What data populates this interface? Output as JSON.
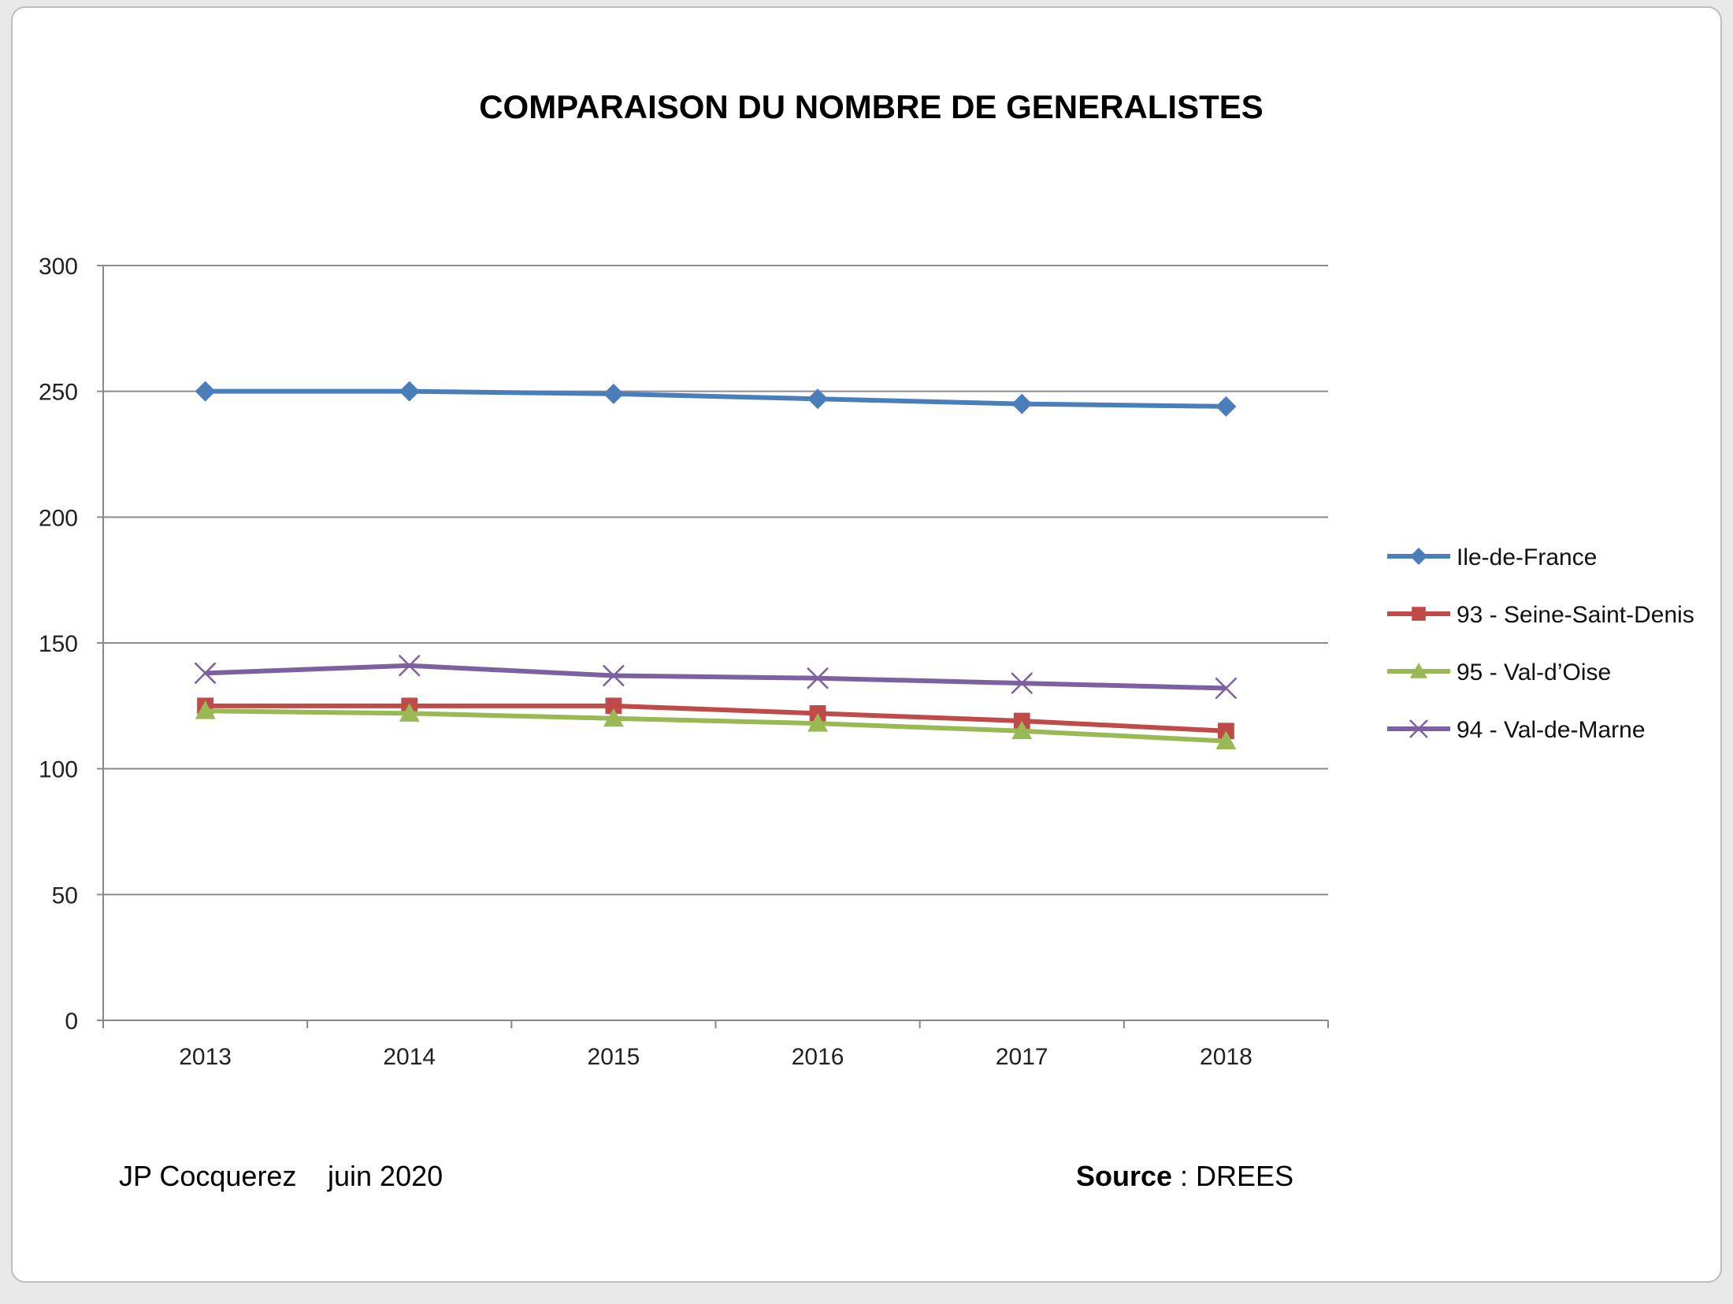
{
  "chart_data": {
    "type": "line",
    "title": "COMPARAISON DU NOMBRE DE GENERALISTES",
    "x": [
      "2013",
      "2014",
      "2015",
      "2016",
      "2017",
      "2018"
    ],
    "ylim": [
      0,
      300
    ],
    "yticks": [
      0,
      50,
      100,
      150,
      200,
      250,
      300
    ],
    "grid": true,
    "legend_position": "right",
    "series": [
      {
        "name": "Ile-de-France",
        "color": "#4a7ebb",
        "marker": "diamond",
        "values": [
          250,
          250,
          249,
          247,
          245,
          244
        ]
      },
      {
        "name": "93 - Seine-Saint-Denis",
        "color": "#be4b48",
        "marker": "square",
        "values": [
          125,
          125,
          125,
          122,
          119,
          115
        ]
      },
      {
        "name": "95 - Val-d’Oise",
        "color": "#98b954",
        "marker": "triangle",
        "values": [
          123,
          122,
          120,
          118,
          115,
          111
        ]
      },
      {
        "name": "94 - Val-de-Marne",
        "color": "#7d60a0",
        "marker": "x",
        "values": [
          138,
          141,
          137,
          136,
          134,
          132
        ]
      }
    ]
  },
  "footer": {
    "author": "JP Cocquerez",
    "date": "juin 2020",
    "source_label": "Source",
    "source_value": " : DREES"
  }
}
